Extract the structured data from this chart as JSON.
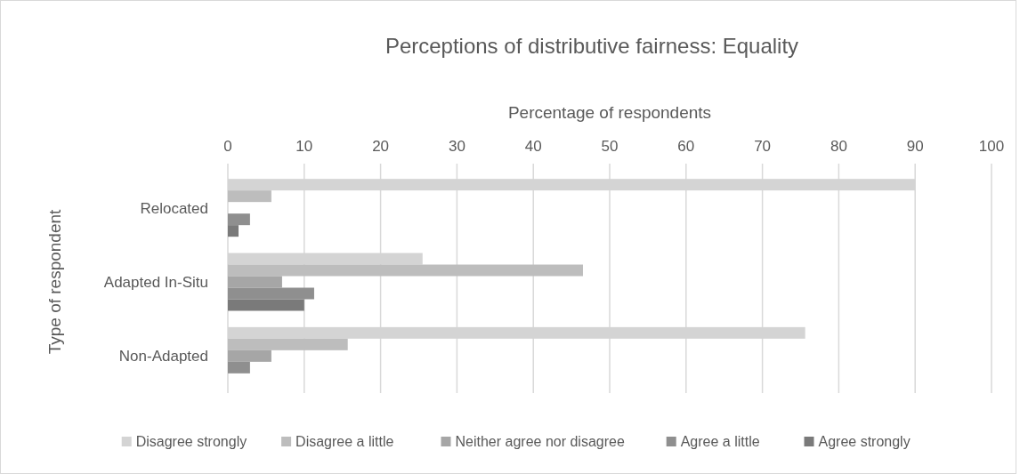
{
  "chart_data": {
    "type": "bar",
    "orientation": "horizontal",
    "title": "Perceptions of distributive fairness: Equality",
    "xlabel": "Percentage of respondents",
    "ylabel": "Type of respondent",
    "categories": [
      "Relocated",
      "Adapted In-Situ",
      "Non-Adapted"
    ],
    "series": [
      {
        "name": "Disagree strongly",
        "color": "#d4d4d4",
        "values": [
          90,
          25.5,
          75.6
        ]
      },
      {
        "name": "Disagree a little",
        "color": "#bdbdbd",
        "values": [
          5.7,
          46.5,
          15.7
        ]
      },
      {
        "name": "Neither agree nor disagree",
        "color": "#a6a6a6",
        "values": [
          0,
          7.1,
          5.7
        ]
      },
      {
        "name": "Agree a little",
        "color": "#8f8f8f",
        "values": [
          2.9,
          11.3,
          2.9
        ]
      },
      {
        "name": "Agree strongly",
        "color": "#7a7a7a",
        "values": [
          1.4,
          10,
          0
        ]
      }
    ],
    "xlim": [
      0,
      100
    ],
    "xticks": [
      0,
      10,
      20,
      30,
      40,
      50,
      60,
      70,
      80,
      90,
      100
    ],
    "grid": "x",
    "legend": "bottom"
  }
}
